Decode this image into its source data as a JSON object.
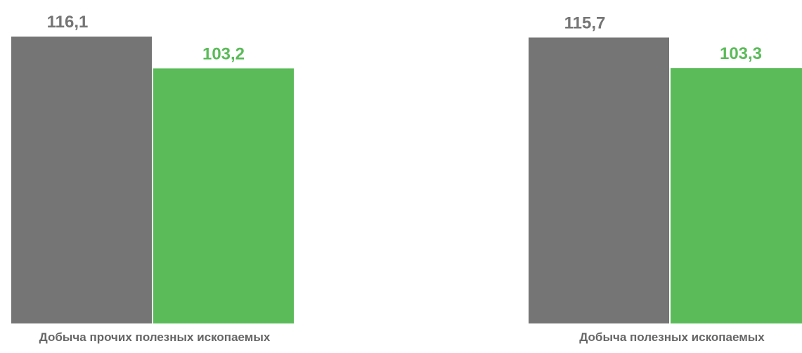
{
  "chart_data": {
    "type": "bar",
    "categories": [
      "Добыча прочих полезных ископаемых",
      "Добыча полезных ископаемых"
    ],
    "series": [
      {
        "values": [
          116.1,
          115.7
        ],
        "labels": [
          "116,1",
          "115,7"
        ],
        "color": "#757575",
        "label_color": "#757575"
      },
      {
        "values": [
          103.2,
          103.3
        ],
        "labels": [
          "103,2",
          "103,3"
        ],
        "color": "#5bbb59",
        "label_color": "#5bbb59"
      }
    ],
    "axes_visible": false,
    "grid": false,
    "legend": "none"
  }
}
